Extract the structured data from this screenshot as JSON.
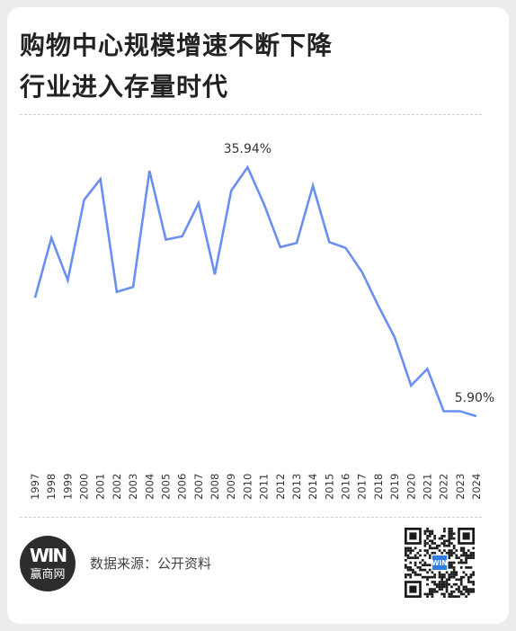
{
  "title_lines": [
    "购物中心规模增速不断下降",
    "行业进入存量时代"
  ],
  "source_text": "数据来源：公开资料",
  "logo": {
    "mark": "WIN",
    "text": "赢商网"
  },
  "qr_badge": "WIN",
  "colors": {
    "line": "#6b8ff0",
    "title": "#222222",
    "qr": "#1a1a1a",
    "qr_badge": "#2f7de1"
  },
  "chart_data": {
    "type": "line",
    "x": [
      "1997",
      "1998",
      "1999",
      "2000",
      "2001",
      "2002",
      "2003",
      "2004",
      "2005",
      "2006",
      "2007",
      "2008",
      "2009",
      "2010",
      "2011",
      "2012",
      "2013",
      "2014",
      "2015",
      "2016",
      "2017",
      "2018",
      "2019",
      "2020",
      "2021",
      "2022",
      "2023",
      "2024"
    ],
    "series": [
      {
        "values": [
          20.2,
          27.4,
          22.3,
          32.0,
          34.5,
          20.9,
          21.5,
          35.5,
          27.2,
          27.6,
          31.6,
          23.0,
          33.1,
          35.94,
          31.5,
          26.3,
          26.8,
          33.7,
          26.9,
          26.2,
          23.3,
          19.2,
          15.4,
          9.6,
          11.6,
          6.5,
          6.5,
          5.9
        ]
      }
    ],
    "annotations": [
      {
        "x": "2010",
        "label": "35.94%"
      },
      {
        "x": "2024",
        "label": "5.90%"
      }
    ],
    "ylim": [
      0,
      40
    ],
    "grid": false,
    "legend": "none"
  }
}
